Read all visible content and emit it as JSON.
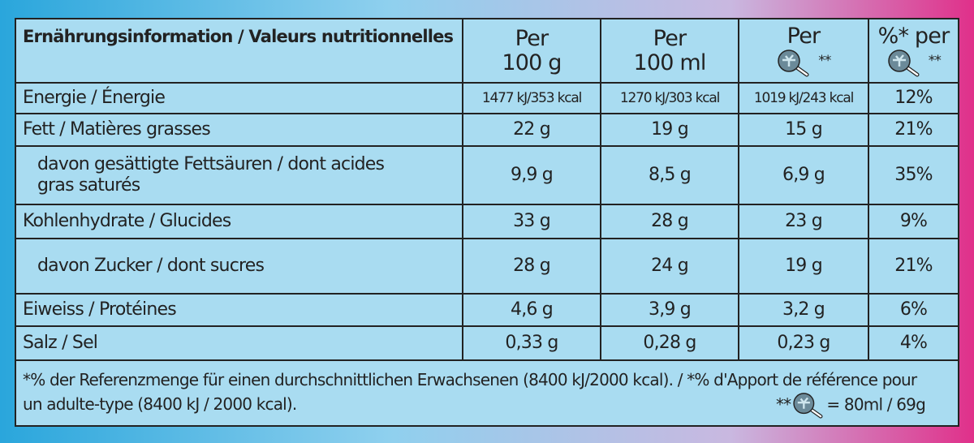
{
  "header": {
    "label": "Ernährungsinformation / Valeurs nutritionnelles",
    "per_100g": {
      "line1": "Per",
      "line2": "100 g"
    },
    "per_100ml": {
      "line1": "Per",
      "line2": "100 ml"
    },
    "per_portion": {
      "line1": "Per",
      "note": "**"
    },
    "percent": {
      "line1": "%* per",
      "note": "**"
    }
  },
  "rows": [
    {
      "label": [
        "Energie / Énergie"
      ],
      "values": [
        "1477 kJ/353 kcal",
        "1270 kJ/303 kcal",
        "1019 kJ/243 kcal",
        "12%"
      ]
    },
    {
      "label": [
        "Fett / Matières grasses"
      ],
      "values": [
        "22 g",
        "19 g",
        "15 g",
        "21%"
      ]
    },
    {
      "label": [
        "davon gesättigte Fettsäuren / dont acides",
        "gras saturés"
      ],
      "values": [
        "9,9 g",
        "8,5 g",
        "6,9 g",
        "35%"
      ]
    },
    {
      "label": [
        "Kohlenhydrate / Glucides"
      ],
      "values": [
        "33 g",
        "28 g",
        "23 g",
        "9%"
      ]
    },
    {
      "label": [
        "davon Zucker / dont sucres"
      ],
      "values": [
        "28 g",
        "24 g",
        "19 g",
        "21%"
      ]
    },
    {
      "label": [
        "Eiweiss / Protéines"
      ],
      "values": [
        "4,6 g",
        "3,9 g",
        "3,2 g",
        "6%"
      ]
    },
    {
      "label": [
        "Salz / Sel"
      ],
      "values": [
        "0,33 g",
        "0,28 g",
        "0,23 g",
        "4%"
      ]
    }
  ],
  "footnote": {
    "line1": "*% der Referenzmenge für einen durchschnittlichen Erwachsenen (8400 kJ/2000 kcal). / *% d'Apport de référence pour",
    "line2": "un adulte-type (8400 kJ / 2000 kcal).",
    "portion_note": "**",
    "portion_value": "= 80ml / 69g"
  }
}
